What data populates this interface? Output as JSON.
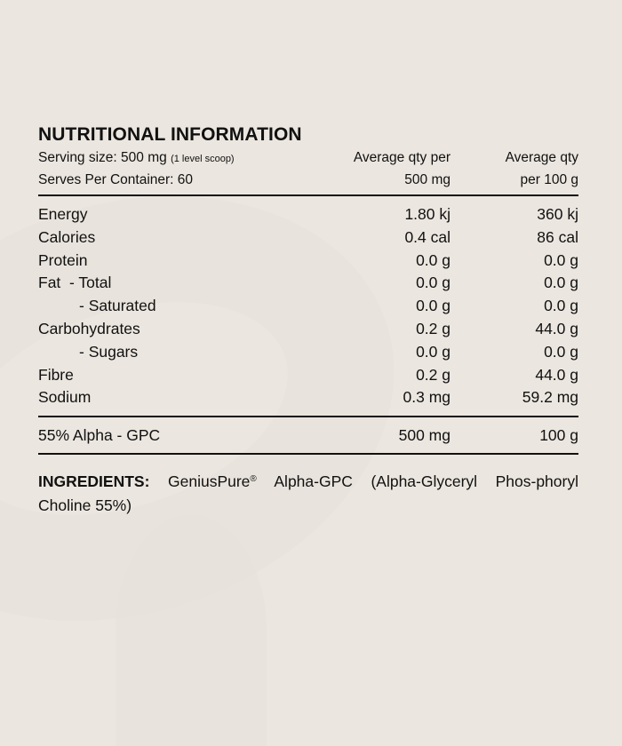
{
  "title": "NUTRITIONAL INFORMATION",
  "header": {
    "serving_size_label": "Serving size: 500 mg",
    "serving_size_note": "(1 level scoop)",
    "serves_per_container": "Serves Per Container: 60",
    "col2_line1": "Average qty per",
    "col2_line2": "500 mg",
    "col3_line1": "Average qty",
    "col3_line2": "per 100 g"
  },
  "nutrients": [
    {
      "name": "Energy",
      "per_serving": "1.80 kj",
      "per_100g": "360 kj",
      "indent": false
    },
    {
      "name": "Calories",
      "per_serving": "0.4 cal",
      "per_100g": "86 cal",
      "indent": false
    },
    {
      "name": "Protein",
      "per_serving": "0.0 g",
      "per_100g": "0.0 g",
      "indent": false
    },
    {
      "name": "Fat  - Total",
      "per_serving": "0.0 g",
      "per_100g": "0.0 g",
      "indent": false
    },
    {
      "name": "- Saturated",
      "per_serving": "0.0 g",
      "per_100g": "0.0 g",
      "indent": true
    },
    {
      "name": "Carbohydrates",
      "per_serving": "0.2 g",
      "per_100g": "44.0 g",
      "indent": false
    },
    {
      "name": "- Sugars",
      "per_serving": "0.0 g",
      "per_100g": "0.0 g",
      "indent": true
    },
    {
      "name": "Fibre",
      "per_serving": "0.2 g",
      "per_100g": "44.0 g",
      "indent": false
    },
    {
      "name": "Sodium",
      "per_serving": "0.3 mg",
      "per_100g": "59.2 mg",
      "indent": false
    }
  ],
  "active": {
    "name": "55% Alpha - GPC",
    "per_serving": "500 mg",
    "per_100g": "100 g"
  },
  "ingredients": {
    "label": "INGREDIENTS:",
    "brand": "GeniusPure",
    "registered_mark": "®",
    "text": " Alpha-GPC (Alpha-Glyceryl Phos-phoryl Choline 55%)"
  },
  "colors": {
    "background": "#ebe6df",
    "text": "#111111",
    "rule": "#111111"
  }
}
